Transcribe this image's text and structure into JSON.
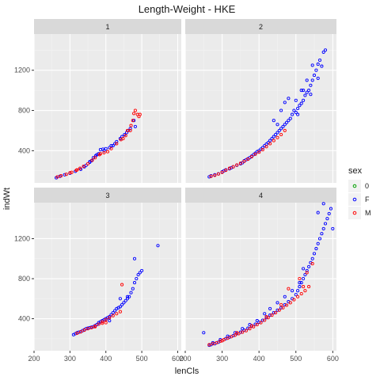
{
  "chart_data": {
    "type": "scatter",
    "title": "Length-Weight - HKE",
    "xlabel": "lenCls",
    "ylabel": "indWt",
    "xlim": [
      200,
      610
    ],
    "ylim": [
      80,
      1560
    ],
    "x_ticks": [
      200,
      300,
      400,
      500,
      600
    ],
    "y_ticks": [
      400,
      800,
      1200
    ],
    "grid": true,
    "legend": {
      "title": "sex",
      "position": "right",
      "entries": [
        {
          "label": "0",
          "color": "#00a000"
        },
        {
          "label": "F",
          "color": "#0000ff"
        },
        {
          "label": "M",
          "color": "#ff0000"
        }
      ]
    },
    "facets": [
      "1",
      "2",
      "3",
      "4"
    ],
    "series": [
      {
        "name": "F",
        "color": "#0000ff"
      },
      {
        "name": "M",
        "color": "#ff0000"
      }
    ],
    "panels": {
      "1": {
        "F": [
          [
            262,
            130
          ],
          [
            272,
            145
          ],
          [
            285,
            160
          ],
          [
            300,
            175
          ],
          [
            315,
            195
          ],
          [
            330,
            215
          ],
          [
            340,
            240
          ],
          [
            345,
            255
          ],
          [
            355,
            290
          ],
          [
            360,
            300
          ],
          [
            365,
            330
          ],
          [
            372,
            350
          ],
          [
            380,
            370
          ],
          [
            385,
            410
          ],
          [
            392,
            415
          ],
          [
            400,
            420
          ],
          [
            410,
            430
          ],
          [
            415,
            450
          ],
          [
            425,
            470
          ],
          [
            430,
            490
          ],
          [
            440,
            520
          ],
          [
            445,
            540
          ],
          [
            452,
            560
          ],
          [
            458,
            580
          ],
          [
            462,
            600
          ],
          [
            468,
            620
          ],
          [
            478,
            700
          ],
          [
            482,
            640
          ],
          [
            355,
            285
          ],
          [
            375,
            360
          ],
          [
            395,
            400
          ],
          [
            420,
            450
          ]
        ],
        "M": [
          [
            265,
            140
          ],
          [
            275,
            150
          ],
          [
            290,
            165
          ],
          [
            305,
            185
          ],
          [
            318,
            205
          ],
          [
            328,
            225
          ],
          [
            338,
            245
          ],
          [
            350,
            270
          ],
          [
            362,
            305
          ],
          [
            370,
            330
          ],
          [
            382,
            360
          ],
          [
            395,
            380
          ],
          [
            405,
            390
          ],
          [
            415,
            420
          ],
          [
            430,
            470
          ],
          [
            442,
            510
          ],
          [
            455,
            550
          ],
          [
            460,
            600
          ],
          [
            470,
            650
          ],
          [
            475,
            700
          ],
          [
            478,
            770
          ],
          [
            482,
            800
          ],
          [
            488,
            760
          ],
          [
            492,
            740
          ],
          [
            495,
            760
          ],
          [
            448,
            520
          ],
          [
            468,
            600
          ],
          [
            385,
            370
          ],
          [
            320,
            210
          ],
          [
            300,
            180
          ]
        ]
      },
      "2": {
        "F": [
          [
            265,
            140
          ],
          [
            270,
            150
          ],
          [
            280,
            160
          ],
          [
            290,
            170
          ],
          [
            300,
            190
          ],
          [
            305,
            200
          ],
          [
            310,
            210
          ],
          [
            320,
            220
          ],
          [
            325,
            230
          ],
          [
            330,
            240
          ],
          [
            340,
            255
          ],
          [
            350,
            270
          ],
          [
            355,
            280
          ],
          [
            360,
            300
          ],
          [
            365,
            310
          ],
          [
            370,
            320
          ],
          [
            375,
            330
          ],
          [
            380,
            345
          ],
          [
            385,
            360
          ],
          [
            390,
            375
          ],
          [
            395,
            390
          ],
          [
            400,
            400
          ],
          [
            405,
            415
          ],
          [
            410,
            430
          ],
          [
            415,
            450
          ],
          [
            420,
            465
          ],
          [
            425,
            480
          ],
          [
            430,
            500
          ],
          [
            435,
            520
          ],
          [
            440,
            540
          ],
          [
            445,
            560
          ],
          [
            450,
            580
          ],
          [
            455,
            600
          ],
          [
            460,
            620
          ],
          [
            465,
            640
          ],
          [
            470,
            660
          ],
          [
            475,
            680
          ],
          [
            480,
            700
          ],
          [
            485,
            720
          ],
          [
            490,
            760
          ],
          [
            495,
            800
          ],
          [
            500,
            780
          ],
          [
            505,
            820
          ],
          [
            510,
            850
          ],
          [
            515,
            870
          ],
          [
            520,
            900
          ],
          [
            525,
            950
          ],
          [
            530,
            980
          ],
          [
            535,
            1000
          ],
          [
            540,
            1050
          ],
          [
            545,
            1100
          ],
          [
            550,
            1150
          ],
          [
            555,
            1200
          ],
          [
            560,
            1260
          ],
          [
            565,
            1300
          ],
          [
            570,
            1240
          ],
          [
            575,
            1380
          ],
          [
            580,
            1400
          ],
          [
            440,
            700
          ],
          [
            460,
            800
          ],
          [
            470,
            880
          ],
          [
            480,
            920
          ],
          [
            450,
            660
          ],
          [
            500,
            900
          ],
          [
            520,
            1000
          ],
          [
            540,
            960
          ],
          [
            560,
            1120
          ],
          [
            505,
            760
          ],
          [
            515,
            1000
          ],
          [
            530,
            1100
          ],
          [
            545,
            1250
          ]
        ],
        "M": [
          [
            270,
            145
          ],
          [
            280,
            155
          ],
          [
            290,
            168
          ],
          [
            300,
            185
          ],
          [
            310,
            205
          ],
          [
            320,
            225
          ],
          [
            330,
            240
          ],
          [
            340,
            258
          ],
          [
            350,
            275
          ],
          [
            360,
            295
          ],
          [
            370,
            315
          ],
          [
            380,
            340
          ],
          [
            390,
            365
          ],
          [
            400,
            385
          ],
          [
            410,
            410
          ],
          [
            420,
            440
          ],
          [
            430,
            470
          ],
          [
            440,
            500
          ],
          [
            450,
            530
          ],
          [
            460,
            560
          ],
          [
            470,
            600
          ]
        ]
      },
      "3": {
        "F": [
          [
            310,
            240
          ],
          [
            315,
            250
          ],
          [
            320,
            260
          ],
          [
            325,
            265
          ],
          [
            330,
            270
          ],
          [
            335,
            280
          ],
          [
            340,
            290
          ],
          [
            345,
            300
          ],
          [
            350,
            305
          ],
          [
            355,
            310
          ],
          [
            360,
            315
          ],
          [
            365,
            320
          ],
          [
            370,
            330
          ],
          [
            375,
            340
          ],
          [
            380,
            360
          ],
          [
            385,
            370
          ],
          [
            390,
            380
          ],
          [
            395,
            390
          ],
          [
            400,
            400
          ],
          [
            405,
            410
          ],
          [
            410,
            420
          ],
          [
            415,
            440
          ],
          [
            420,
            460
          ],
          [
            425,
            480
          ],
          [
            430,
            500
          ],
          [
            435,
            510
          ],
          [
            440,
            520
          ],
          [
            445,
            540
          ],
          [
            450,
            560
          ],
          [
            455,
            580
          ],
          [
            460,
            600
          ],
          [
            465,
            620
          ],
          [
            470,
            660
          ],
          [
            475,
            700
          ],
          [
            480,
            760
          ],
          [
            485,
            800
          ],
          [
            490,
            840
          ],
          [
            495,
            860
          ],
          [
            500,
            880
          ],
          [
            480,
            1000
          ],
          [
            545,
            1130
          ],
          [
            410,
            380
          ],
          [
            440,
            600
          ],
          [
            460,
            620
          ]
        ],
        "M": [
          [
            320,
            255
          ],
          [
            330,
            268
          ],
          [
            340,
            285
          ],
          [
            350,
            300
          ],
          [
            360,
            310
          ],
          [
            370,
            325
          ],
          [
            380,
            345
          ],
          [
            390,
            370
          ],
          [
            400,
            390
          ],
          [
            410,
            410
          ],
          [
            420,
            430
          ],
          [
            430,
            450
          ],
          [
            440,
            470
          ],
          [
            445,
            740
          ],
          [
            390,
            355
          ],
          [
            370,
            320
          ],
          [
            400,
            360
          ]
        ]
      },
      "4": {
        "F": [
          [
            250,
            260
          ],
          [
            265,
            135
          ],
          [
            270,
            140
          ],
          [
            280,
            150
          ],
          [
            290,
            165
          ],
          [
            300,
            180
          ],
          [
            310,
            200
          ],
          [
            320,
            215
          ],
          [
            330,
            230
          ],
          [
            340,
            250
          ],
          [
            350,
            265
          ],
          [
            360,
            285
          ],
          [
            370,
            305
          ],
          [
            380,
            325
          ],
          [
            390,
            345
          ],
          [
            400,
            365
          ],
          [
            410,
            385
          ],
          [
            420,
            410
          ],
          [
            430,
            435
          ],
          [
            440,
            460
          ],
          [
            450,
            485
          ],
          [
            460,
            510
          ],
          [
            470,
            540
          ],
          [
            480,
            570
          ],
          [
            490,
            600
          ],
          [
            500,
            640
          ],
          [
            505,
            680
          ],
          [
            510,
            720
          ],
          [
            515,
            760
          ],
          [
            520,
            800
          ],
          [
            525,
            840
          ],
          [
            530,
            880
          ],
          [
            535,
            920
          ],
          [
            540,
            960
          ],
          [
            545,
            1000
          ],
          [
            550,
            1050
          ],
          [
            555,
            1100
          ],
          [
            560,
            1150
          ],
          [
            565,
            1200
          ],
          [
            570,
            1250
          ],
          [
            575,
            1300
          ],
          [
            580,
            1350
          ],
          [
            585,
            1400
          ],
          [
            590,
            1450
          ],
          [
            595,
            1500
          ],
          [
            600,
            1300
          ],
          [
            560,
            1460
          ],
          [
            575,
            1550
          ],
          [
            520,
            900
          ],
          [
            510,
            760
          ],
          [
            490,
            680
          ],
          [
            470,
            620
          ],
          [
            450,
            560
          ],
          [
            430,
            500
          ],
          [
            415,
            450
          ],
          [
            395,
            380
          ],
          [
            375,
            340
          ],
          [
            355,
            300
          ],
          [
            335,
            260
          ],
          [
            315,
            225
          ],
          [
            295,
            190
          ],
          [
            275,
            160
          ]
        ],
        "M": [
          [
            265,
            140
          ],
          [
            275,
            150
          ],
          [
            285,
            160
          ],
          [
            295,
            175
          ],
          [
            305,
            190
          ],
          [
            315,
            205
          ],
          [
            325,
            220
          ],
          [
            335,
            235
          ],
          [
            345,
            250
          ],
          [
            355,
            265
          ],
          [
            365,
            280
          ],
          [
            375,
            300
          ],
          [
            385,
            320
          ],
          [
            395,
            340
          ],
          [
            405,
            360
          ],
          [
            415,
            385
          ],
          [
            425,
            410
          ],
          [
            435,
            435
          ],
          [
            445,
            460
          ],
          [
            455,
            485
          ],
          [
            465,
            510
          ],
          [
            475,
            535
          ],
          [
            485,
            560
          ],
          [
            495,
            590
          ],
          [
            505,
            620
          ],
          [
            515,
            650
          ],
          [
            525,
            680
          ],
          [
            535,
            720
          ],
          [
            545,
            950
          ],
          [
            480,
            700
          ],
          [
            510,
            800
          ],
          [
            530,
            860
          ],
          [
            520,
            720
          ],
          [
            460,
            540
          ],
          [
            420,
            420
          ],
          [
            380,
            330
          ],
          [
            340,
            260
          ],
          [
            300,
            180
          ]
        ]
      }
    }
  }
}
